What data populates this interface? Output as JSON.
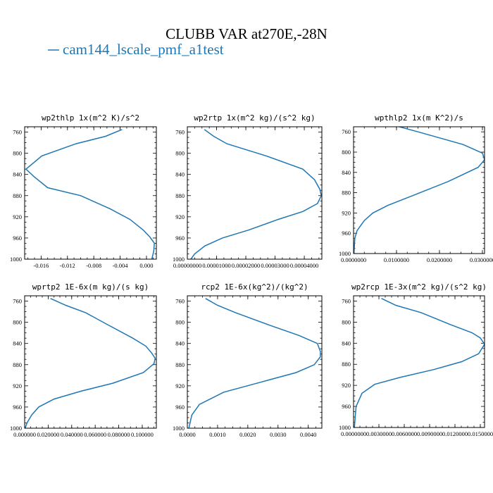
{
  "title": "CLUBB VAR at270E,-28N",
  "legend": {
    "label": "cam144_lscale_pmf_a1test",
    "color": "#1f77b4"
  },
  "chart_data": [
    {
      "type": "line",
      "title": "wp2thlp  1x(m^2 K)/s^2",
      "xlim": [
        -0.0185,
        0.0015
      ],
      "ylim": [
        1000,
        750
      ],
      "xticks": [
        -0.016,
        -0.012,
        -0.008,
        -0.004,
        0.0
      ],
      "xtick_labels": [
        "-0.016",
        "-0.012",
        "-0.008",
        "-0.004",
        "0.000"
      ],
      "yticks": [
        760,
        800,
        840,
        880,
        920,
        960,
        1000
      ],
      "series": [
        {
          "x": [
            -0.0037,
            -0.0062,
            -0.0107,
            -0.0159,
            -0.0183,
            -0.017,
            -0.015,
            -0.01,
            -0.0055,
            -0.0025,
            -0.0005,
            0.0005,
            0.0012,
            0.0011,
            0.0008
          ],
          "y": [
            755,
            768,
            782,
            805,
            830,
            845,
            865,
            880,
            905,
            925,
            945,
            958,
            970,
            985,
            1000
          ]
        }
      ]
    },
    {
      "type": "line",
      "title": "wp2rtp  1x(m^2 kg)/(s^2 kg)",
      "xlim": [
        0,
        4.6e-05
      ],
      "ylim": [
        1000,
        750
      ],
      "xticks": [
        0,
        1e-05,
        2e-05,
        3e-05,
        4e-05
      ],
      "xtick_labels": [
        "0.00000000",
        "0.00001000",
        "0.00002000",
        "0.00003000",
        "0.00004000"
      ],
      "yticks": [
        760,
        800,
        840,
        880,
        920,
        960,
        1000
      ],
      "series": [
        {
          "x": [
            5.8e-06,
            9e-06,
            1.35e-05,
            2.7e-05,
            3.95e-05,
            4.35e-05,
            4.53e-05,
            4.58e-05,
            4.45e-05,
            3.95e-05,
            3.1e-05,
            2.1e-05,
            1.2e-05,
            6e-06,
            2.5e-06,
            1.2e-06
          ],
          "y": [
            755,
            768,
            782,
            805,
            830,
            850,
            868,
            880,
            895,
            910,
            925,
            945,
            960,
            975,
            990,
            1000
          ]
        }
      ]
    },
    {
      "type": "line",
      "title": "wpthlp2  1x(m K^2)/s",
      "xlim": [
        0,
        0.0305
      ],
      "ylim": [
        1000,
        750
      ],
      "xticks": [
        0,
        0.01,
        0.02,
        0.03
      ],
      "xtick_labels": [
        "0.0000000",
        "0.0100000",
        "0.0200000",
        "0.0300000"
      ],
      "yticks": [
        760,
        800,
        840,
        880,
        920,
        960,
        1000
      ],
      "series": [
        {
          "x": [
            0.0085,
            0.015,
            0.0255,
            0.03,
            0.0305,
            0.029,
            0.022,
            0.014,
            0.008,
            0.0045,
            0.0025,
            0.0008,
            0.0003,
            0.0002,
            0.0001
          ],
          "y": [
            745,
            760,
            785,
            802,
            815,
            830,
            858,
            885,
            905,
            920,
            935,
            955,
            970,
            985,
            1000
          ]
        }
      ]
    },
    {
      "type": "line",
      "title": "wprtp2  1E-6x(m kg)/(s kg)",
      "xlim": [
        0,
        0.112
      ],
      "ylim": [
        1000,
        750
      ],
      "xticks": [
        0,
        0.02,
        0.04,
        0.06,
        0.08,
        0.1
      ],
      "xtick_labels": [
        "0.000000",
        "0.020000",
        "0.040000",
        "0.060000",
        "0.080000",
        "0.100000"
      ],
      "yticks": [
        760,
        800,
        840,
        880,
        920,
        960,
        1000
      ],
      "series": [
        {
          "x": [
            0.022,
            0.035,
            0.052,
            0.071,
            0.092,
            0.103,
            0.108,
            0.111,
            0.11,
            0.101,
            0.075,
            0.048,
            0.025,
            0.012,
            0.006,
            0.002,
            0.0005
          ],
          "y": [
            755,
            768,
            782,
            805,
            830,
            845,
            858,
            868,
            878,
            895,
            915,
            930,
            945,
            960,
            975,
            990,
            1000
          ]
        }
      ]
    },
    {
      "type": "line",
      "title": "rcp2  1E-6x(kg^2)/(kg^2)",
      "xlim": [
        0,
        0.00445
      ],
      "ylim": [
        1000,
        750
      ],
      "xticks": [
        0,
        0.001,
        0.002,
        0.003,
        0.004
      ],
      "xtick_labels": [
        "0.0000",
        "0.0010",
        "0.0020",
        "0.0030",
        "0.0040"
      ],
      "yticks": [
        760,
        800,
        840,
        880,
        920,
        960,
        1000
      ],
      "series": [
        {
          "x": [
            0.0006,
            0.001,
            0.0016,
            0.0027,
            0.0037,
            0.0043,
            0.0044,
            0.0044,
            0.0042,
            0.0036,
            0.0025,
            0.0012,
            0.0004,
            0.00015,
            5e-05
          ],
          "y": [
            755,
            768,
            782,
            805,
            825,
            840,
            855,
            865,
            880,
            895,
            912,
            932,
            955,
            975,
            1000
          ]
        }
      ]
    },
    {
      "type": "line",
      "title": "wp2rcp  1E-3x(m^2 kg)/(s^2 kg)",
      "xlim": [
        0,
        0.0155
      ],
      "ylim": [
        1000,
        750
      ],
      "xticks": [
        0,
        0.003,
        0.006,
        0.009,
        0.012,
        0.015
      ],
      "xtick_labels": [
        "0.0000000",
        "0.0030000",
        "0.0060000",
        "0.0090000",
        "0.0120000",
        "0.0150000"
      ],
      "yticks": [
        760,
        800,
        840,
        880,
        920,
        960,
        1000
      ],
      "series": [
        {
          "x": [
            0.0033,
            0.005,
            0.008,
            0.0115,
            0.014,
            0.015,
            0.0155,
            0.0148,
            0.0128,
            0.0095,
            0.0055,
            0.0025,
            0.001,
            0.0003,
            0.0001
          ],
          "y": [
            755,
            768,
            782,
            805,
            820,
            830,
            842,
            860,
            875,
            890,
            905,
            918,
            935,
            960,
            1000
          ]
        }
      ]
    }
  ]
}
